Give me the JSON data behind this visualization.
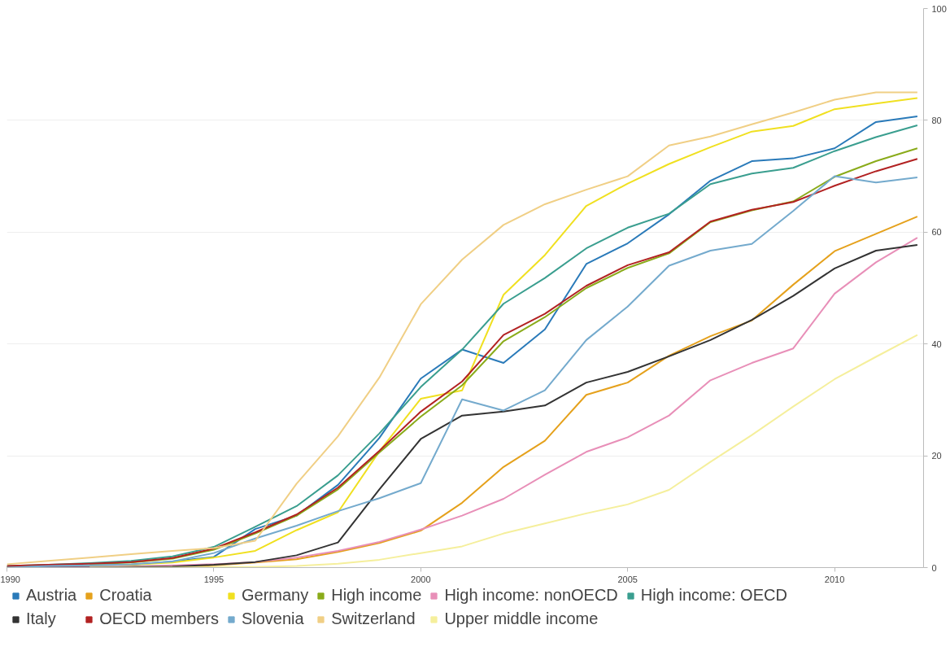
{
  "chart_data": {
    "type": "line",
    "x": [
      1990,
      1991,
      1992,
      1993,
      1994,
      1995,
      1996,
      1997,
      1998,
      1999,
      2000,
      2001,
      2002,
      2003,
      2004,
      2005,
      2006,
      2007,
      2008,
      2009,
      2010,
      2011,
      2012
    ],
    "xlim": [
      1990,
      2012.15
    ],
    "xticks": [
      1990,
      1995,
      2000,
      2005,
      2010
    ],
    "ylim": [
      0,
      100
    ],
    "yticks": [
      0,
      20,
      40,
      60,
      80,
      100
    ],
    "grid": "y",
    "legend": "bottom",
    "marker": "none",
    "line_style": "solid",
    "series": [
      {
        "name": "Austria",
        "color": "#2a7ab9",
        "values": [
          0.1,
          0.3,
          0.4,
          0.5,
          1.1,
          1.9,
          6.9,
          9.3,
          14.8,
          23.2,
          33.8,
          39,
          36.6,
          42.6,
          54.3,
          58,
          63.2,
          69.2,
          72.7,
          73.2,
          75,
          79.7,
          80.7
        ]
      },
      {
        "name": "Croatia",
        "color": "#e5a11c",
        "values": [
          null,
          null,
          0,
          0,
          0.1,
          0.4,
          0.9,
          1.5,
          2.8,
          4.4,
          6.6,
          11.6,
          18,
          22.7,
          30.9,
          33.1,
          37.9,
          41.4,
          44.2,
          50.6,
          56.6,
          59.7,
          62.8
        ]
      },
      {
        "name": "Germany",
        "color": "#f0e020",
        "values": [
          0.1,
          0.2,
          0.4,
          0.5,
          0.9,
          1.8,
          3,
          6.7,
          9.9,
          20.8,
          30.2,
          31.7,
          48.8,
          55.9,
          64.7,
          68.7,
          72.2,
          75.2,
          78,
          79,
          82,
          83,
          84
        ]
      },
      {
        "name": "High income",
        "color": "#8aab1a",
        "values": [
          null,
          null,
          0.6,
          0.9,
          1.6,
          3.2,
          6.1,
          9.3,
          14,
          20.6,
          27,
          32.6,
          40.5,
          44.8,
          50,
          53.6,
          56.2,
          61.8,
          63.9,
          65.5,
          69.9,
          72.7,
          75
        ]
      },
      {
        "name": "High income: nonOECD",
        "color": "#e88fb8",
        "values": [
          0,
          0.1,
          0.1,
          0.2,
          0.4,
          0.6,
          1,
          1.8,
          3,
          4.6,
          6.8,
          9.3,
          12.3,
          16.6,
          20.7,
          23.3,
          27.2,
          33.5,
          36.6,
          39.2,
          49,
          54.6,
          59
        ]
      },
      {
        "name": "High income: OECD",
        "color": "#3a9e8f",
        "values": [
          0.3,
          0.5,
          0.8,
          1.2,
          2,
          3.7,
          7.3,
          11,
          16.5,
          24,
          32.3,
          39,
          47.2,
          51.8,
          57.1,
          60.8,
          63.3,
          68.6,
          70.5,
          71.5,
          74.5,
          77,
          79.1
        ]
      },
      {
        "name": "Italy",
        "color": "#333333",
        "values": [
          0,
          0,
          0,
          0.1,
          0.2,
          0.5,
          1,
          2.2,
          4.5,
          14,
          23,
          27.2,
          27.9,
          29,
          33.1,
          35,
          37.8,
          40.7,
          44.3,
          48.6,
          53.5,
          56.7,
          57.7
        ]
      },
      {
        "name": "OECD members",
        "color": "#b22222",
        "values": [
          0.3,
          0.5,
          0.7,
          1,
          1.7,
          3.4,
          6.3,
          9.5,
          14.3,
          20.9,
          27.9,
          33.3,
          41.6,
          45.4,
          50.4,
          54.1,
          56.4,
          61.9,
          64,
          65.4,
          68.3,
          70.9,
          73.1
        ]
      },
      {
        "name": "Slovenia",
        "color": "#74aacd",
        "values": [
          0,
          0.3,
          0.4,
          0.6,
          1.1,
          2.6,
          5.2,
          7.5,
          10.1,
          12.4,
          15.1,
          30.1,
          28.1,
          31.7,
          40.7,
          46.7,
          54,
          56.7,
          57.9,
          63.8,
          70,
          68.9,
          69.8
        ]
      },
      {
        "name": "Switzerland",
        "color": "#f0cf85",
        "values": [
          0.6,
          1.2,
          1.8,
          2.4,
          3,
          3.5,
          4.8,
          15,
          23.5,
          34,
          47.1,
          55.1,
          61.3,
          65,
          67.6,
          70,
          75.5,
          77.1,
          79.3,
          81.4,
          83.7,
          85,
          85
        ]
      },
      {
        "name": "Upper middle income",
        "color": "#f5ef9c",
        "values": [
          null,
          null,
          0,
          0,
          0,
          0.1,
          0.1,
          0.3,
          0.7,
          1.4,
          2.6,
          3.8,
          6.1,
          7.9,
          9.7,
          11.3,
          13.9,
          18.9,
          23.7,
          28.8,
          33.7,
          37.7,
          41.6
        ]
      }
    ]
  }
}
